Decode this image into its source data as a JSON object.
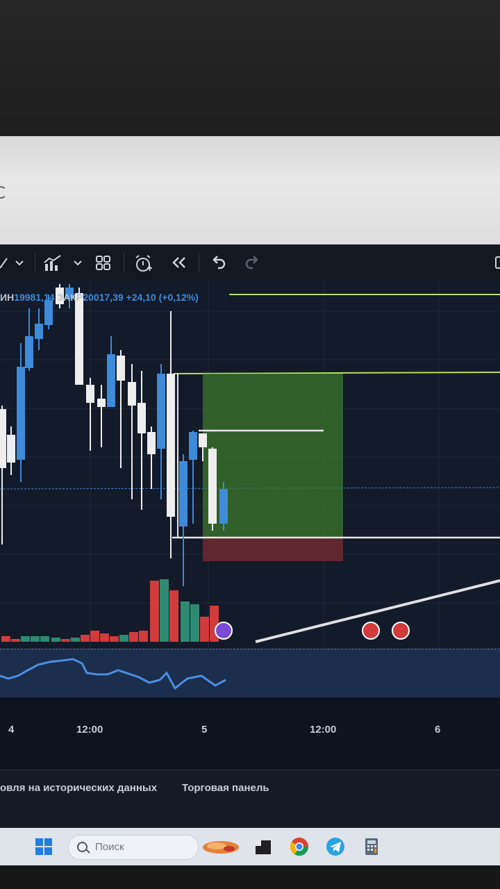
{
  "toolbar": {
    "icons": [
      "draw-line-icon",
      "chevron-down-icon",
      "indicators-icon",
      "chevron-down-icon",
      "layout-grid-icon",
      "alert-icon",
      "replay-icon",
      "undo-icon",
      "redo-icon"
    ]
  },
  "legend": {
    "open_label": "ИН",
    "open_value": "19981,14",
    "close_label": "ЗАКР",
    "close_value": "20017,39",
    "change": "+24,10 (+0,12%)"
  },
  "time_axis": {
    "ticks": [
      "4",
      "12:00",
      "5",
      "12:00",
      "6"
    ]
  },
  "bottom_panel": {
    "tab_replay": "овля на исторических данных",
    "tab_trading": "Торговая панель"
  },
  "taskbar": {
    "search_placeholder": "Поиск",
    "icons": [
      "windows-start-icon",
      "search-icon",
      "widget-icon",
      "terminal-icon",
      "chrome-icon",
      "telegram-icon",
      "calculator-icon"
    ]
  },
  "colors": {
    "background": "#131a29",
    "bull": "#3d8bd9",
    "bear": "#eeeeee",
    "profit_zone": "#3f7d2a",
    "loss_zone": "#6e2a30",
    "volume_up": "#2e8b72",
    "volume_down": "#d23b3b",
    "level_line": "#b6e05a"
  }
}
